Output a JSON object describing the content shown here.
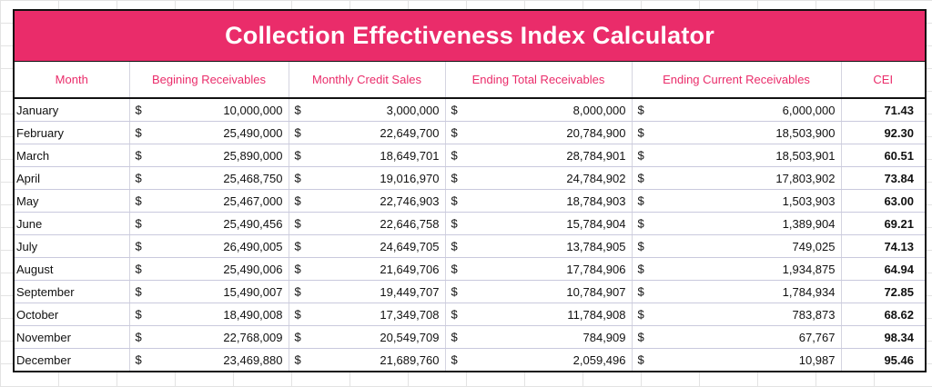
{
  "title": "Collection Effectiveness Index Calculator",
  "headers": {
    "month": "Month",
    "beginning": "Begining Receivables",
    "sales": "Monthly Credit Sales",
    "ending_total": "Ending Total Receivables",
    "ending_current": "Ending Current Receivables",
    "cei": "CEI"
  },
  "currency_symbol": "$",
  "colors": {
    "accent": "#ea2c6a",
    "border": "#111111",
    "gridline": "#d4d4e0"
  },
  "rows": [
    {
      "month": "January",
      "beginning": "10,000,000",
      "sales": "3,000,000",
      "ending_total": "8,000,000",
      "ending_current": "6,000,000",
      "cei": "71.43"
    },
    {
      "month": "February",
      "beginning": "25,490,000",
      "sales": "22,649,700",
      "ending_total": "20,784,900",
      "ending_current": "18,503,900",
      "cei": "92.30"
    },
    {
      "month": "March",
      "beginning": "25,890,000",
      "sales": "18,649,701",
      "ending_total": "28,784,901",
      "ending_current": "18,503,901",
      "cei": "60.51"
    },
    {
      "month": "April",
      "beginning": "25,468,750",
      "sales": "19,016,970",
      "ending_total": "24,784,902",
      "ending_current": "17,803,902",
      "cei": "73.84"
    },
    {
      "month": "May",
      "beginning": "25,467,000",
      "sales": "22,746,903",
      "ending_total": "18,784,903",
      "ending_current": "1,503,903",
      "cei": "63.00"
    },
    {
      "month": "June",
      "beginning": "25,490,456",
      "sales": "22,646,758",
      "ending_total": "15,784,904",
      "ending_current": "1,389,904",
      "cei": "69.21"
    },
    {
      "month": "July",
      "beginning": "26,490,005",
      "sales": "24,649,705",
      "ending_total": "13,784,905",
      "ending_current": "749,025",
      "cei": "74.13"
    },
    {
      "month": "August",
      "beginning": "25,490,006",
      "sales": "21,649,706",
      "ending_total": "17,784,906",
      "ending_current": "1,934,875",
      "cei": "64.94"
    },
    {
      "month": "September",
      "beginning": "15,490,007",
      "sales": "19,449,707",
      "ending_total": "10,784,907",
      "ending_current": "1,784,934",
      "cei": "72.85"
    },
    {
      "month": "October",
      "beginning": "18,490,008",
      "sales": "17,349,708",
      "ending_total": "11,784,908",
      "ending_current": "783,873",
      "cei": "68.62"
    },
    {
      "month": "November",
      "beginning": "22,768,009",
      "sales": "20,549,709",
      "ending_total": "784,909",
      "ending_current": "67,767",
      "cei": "98.34"
    },
    {
      "month": "December",
      "beginning": "23,469,880",
      "sales": "21,689,760",
      "ending_total": "2,059,496",
      "ending_current": "10,987",
      "cei": "95.46"
    }
  ]
}
